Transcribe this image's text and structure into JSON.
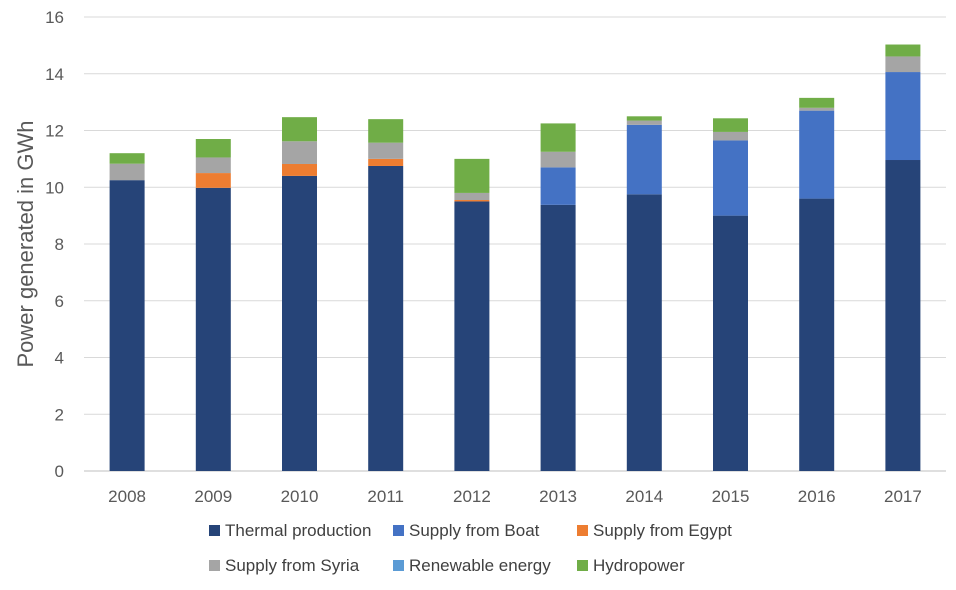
{
  "chart_data": {
    "type": "bar",
    "stacked": true,
    "title": "",
    "xlabel": "",
    "ylabel": "Power generated in GWh",
    "ylim": [
      0,
      16
    ],
    "yticks": [
      0,
      2,
      4,
      6,
      8,
      10,
      12,
      14,
      16
    ],
    "grid": true,
    "legend_position": "bottom",
    "categories": [
      "2008",
      "2009",
      "2010",
      "2011",
      "2012",
      "2013",
      "2014",
      "2015",
      "2016",
      "2017"
    ],
    "series": [
      {
        "name": "Thermal production",
        "color": "#264478",
        "values": [
          10.25,
          9.98,
          10.4,
          10.75,
          9.5,
          9.38,
          9.75,
          9.0,
          9.6,
          10.96
        ]
      },
      {
        "name": "Supply from Boat",
        "color": "#4472C4",
        "values": [
          0,
          0,
          0,
          0,
          0,
          1.32,
          2.45,
          2.65,
          3.1,
          3.1
        ]
      },
      {
        "name": "Supply from Egypt",
        "color": "#ED7D31",
        "values": [
          0,
          0.52,
          0.42,
          0.25,
          0.05,
          0,
          0,
          0,
          0,
          0
        ]
      },
      {
        "name": "Supply from Syria",
        "color": "#A5A5A5",
        "values": [
          0.58,
          0.55,
          0.8,
          0.57,
          0.25,
          0.55,
          0.15,
          0.3,
          0.1,
          0.55
        ]
      },
      {
        "name": "Renewable energy",
        "color": "#5B9BD5",
        "values": [
          0,
          0,
          0,
          0,
          0,
          0,
          0,
          0,
          0,
          0
        ]
      },
      {
        "name": "Hydropower",
        "color": "#70AD47",
        "values": [
          0.37,
          0.65,
          0.85,
          0.83,
          1.2,
          1.0,
          0.15,
          0.48,
          0.35,
          0.42
        ]
      }
    ]
  }
}
